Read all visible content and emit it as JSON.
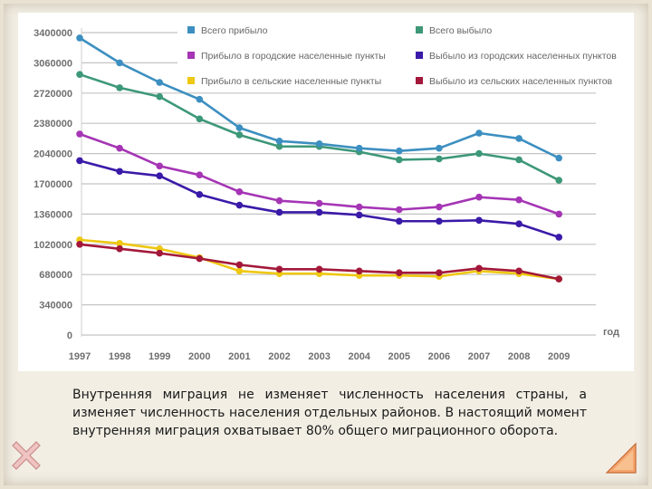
{
  "chart_data": {
    "type": "line",
    "categories": [
      "1997",
      "1998",
      "1999",
      "2000",
      "2001",
      "2002",
      "2003",
      "2004",
      "2005",
      "2006",
      "2007",
      "2008",
      "2009"
    ],
    "y_ticks": [
      "0",
      "340000",
      "680000",
      "1020000",
      "1360000",
      "1700000",
      "2040000",
      "2380000",
      "2720000",
      "3060000",
      "3400000"
    ],
    "ylim": [
      0,
      3400000
    ],
    "xlabel": "год",
    "ylabel": "",
    "grid": true,
    "legend_position": "top-right",
    "series": [
      {
        "name": "Всего прибыло",
        "color": "#3c8fc0",
        "values": [
          3340000,
          3060000,
          2840000,
          2650000,
          2330000,
          2180000,
          2150000,
          2100000,
          2070000,
          2100000,
          2270000,
          2210000,
          1990000
        ]
      },
      {
        "name": "Всего выбыло",
        "color": "#3d9878",
        "values": [
          2930000,
          2780000,
          2680000,
          2430000,
          2250000,
          2120000,
          2120000,
          2060000,
          1970000,
          1980000,
          2040000,
          1970000,
          1740000
        ]
      },
      {
        "name": "Прибыло в городские населенные пункты",
        "color": "#a535b5",
        "values": [
          2260000,
          2100000,
          1900000,
          1800000,
          1610000,
          1510000,
          1480000,
          1440000,
          1410000,
          1440000,
          1550000,
          1520000,
          1360000
        ]
      },
      {
        "name": "Выбыло из городских населенных пунктов",
        "color": "#3a1aa8",
        "values": [
          1960000,
          1840000,
          1790000,
          1580000,
          1460000,
          1380000,
          1380000,
          1350000,
          1280000,
          1280000,
          1290000,
          1250000,
          1100000
        ]
      },
      {
        "name": "Прибыло в сельские населенные пункты",
        "color": "#eec812",
        "values": [
          1070000,
          1030000,
          970000,
          870000,
          720000,
          690000,
          690000,
          670000,
          670000,
          660000,
          720000,
          690000,
          630000
        ]
      },
      {
        "name": "Выбыло из сельских населенных пунктов",
        "color": "#a3183a",
        "values": [
          1020000,
          970000,
          920000,
          860000,
          790000,
          740000,
          740000,
          720000,
          700000,
          700000,
          750000,
          720000,
          630000
        ]
      }
    ],
    "legend_order": [
      0,
      1,
      2,
      3,
      4,
      5
    ]
  },
  "caption": "Внутренняя миграция не изменяет численность населения страны, а изменяет численность населения отдельных районов. В настоящий момент внутренняя миграция охватывает 80% общего миграционного оборота."
}
